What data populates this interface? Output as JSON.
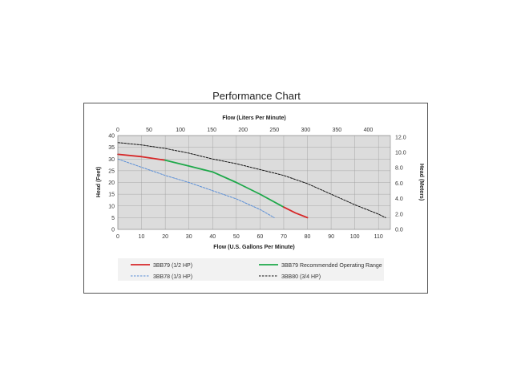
{
  "page": {
    "title": "Performance Chart"
  },
  "chart_data": {
    "type": "line",
    "title": "Performance Chart",
    "xlabel": "Flow (U.S. Gallons Per Minute)",
    "x2label": "Flow (Liters Per Minute)",
    "ylabel": "Head (Feet)",
    "y2label": "Head (Meters)",
    "xlim": [
      0,
      115
    ],
    "ylim": [
      0,
      40
    ],
    "x2lim": [
      0,
      435.3
    ],
    "y2lim": [
      0,
      12.19
    ],
    "x_ticks": [
      "0",
      "10",
      "20",
      "30",
      "40",
      "50",
      "60",
      "70",
      "80",
      "90",
      "100",
      "110"
    ],
    "y_ticks": [
      "0",
      "5",
      "10",
      "15",
      "20",
      "25",
      "30",
      "35",
      "40"
    ],
    "x2_ticks": [
      "0",
      "50",
      "100",
      "150",
      "200",
      "250",
      "300",
      "350",
      "400"
    ],
    "y2_ticks": [
      "0.0",
      "2.0",
      "4.0",
      "6.0",
      "8.0",
      "10.0",
      "12.0"
    ],
    "grid": true,
    "legend_position": "bottom",
    "series": [
      {
        "name": "3BB79 (1/2 HP)",
        "color": "#d62728",
        "style": "solid",
        "x": [
          0,
          10,
          20
        ],
        "y": [
          32,
          31,
          29.5
        ]
      },
      {
        "name": "3BB79 Recommended Operating Range",
        "color": "#1ea84a",
        "style": "solid",
        "x": [
          20,
          30,
          40,
          50,
          60,
          70
        ],
        "y": [
          29.5,
          27,
          24.5,
          20,
          15,
          9.5
        ]
      },
      {
        "name": "3BB79 (1/2 HP)",
        "color": "#d62728",
        "style": "solid",
        "x": [
          70,
          75,
          80
        ],
        "y": [
          9.5,
          7,
          5
        ]
      },
      {
        "name": "3BB78 (1/3 HP)",
        "color": "#5b8fd6",
        "style": "dashed",
        "x": [
          0,
          10,
          20,
          30,
          40,
          50,
          60,
          66
        ],
        "y": [
          30,
          26.5,
          23,
          20,
          16.5,
          13,
          8.5,
          5
        ]
      },
      {
        "name": "3BB80 (3/4 HP)",
        "color": "#111111",
        "style": "dashed",
        "x": [
          0,
          10,
          20,
          30,
          40,
          50,
          60,
          70,
          80,
          90,
          100,
          110,
          113
        ],
        "y": [
          37,
          36,
          34.5,
          32.5,
          30,
          28,
          25.5,
          23,
          19.5,
          15,
          10.5,
          6.5,
          5
        ]
      }
    ]
  },
  "legend": [
    {
      "label": "3BB79 (1/2 HP)",
      "color": "#d62728",
      "style": "solid"
    },
    {
      "label": "3BB79 Recommended Operating Range",
      "color": "#1ea84a",
      "style": "solid"
    },
    {
      "label": "3BB78 (1/3 HP)",
      "color": "#5b8fd6",
      "style": "dashed"
    },
    {
      "label": "3BB80 (3/4 HP)",
      "color": "#111111",
      "style": "dashed"
    }
  ]
}
